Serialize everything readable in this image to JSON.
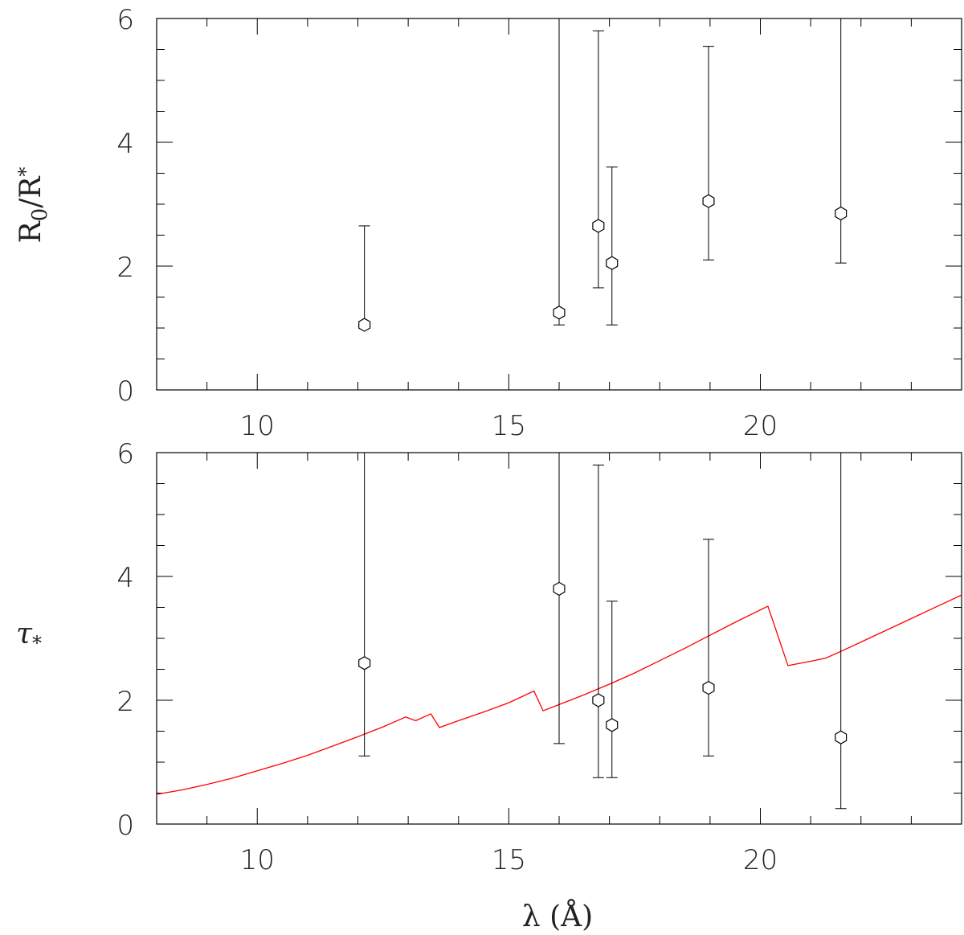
{
  "chart_data": [
    {
      "type": "scatter",
      "id": "top",
      "xlabel": "",
      "ylabel_main": "R",
      "ylabel_sub": "0",
      "ylabel_rest": "/R",
      "ylabel_sup": "*",
      "xlim": [
        8,
        24
      ],
      "ylim": [
        0,
        6
      ],
      "x_major_ticks": [
        10,
        15,
        20
      ],
      "x_tick_labels": [
        "10",
        "15",
        "20"
      ],
      "y_major_ticks": [
        0,
        2,
        4,
        6
      ],
      "y_tick_labels": [
        "0",
        "2",
        "4",
        "6"
      ],
      "x_minor_step": 1,
      "y_minor_step": 0.5,
      "series": [
        {
          "points": [
            {
              "x": 12.13,
              "y": 1.05,
              "ylo": 1.05,
              "yhi": 2.65
            },
            {
              "x": 16.0,
              "y": 1.25,
              "ylo": 1.05,
              "yhi": 6.0
            },
            {
              "x": 16.78,
              "y": 2.65,
              "ylo": 1.65,
              "yhi": 5.8
            },
            {
              "x": 17.05,
              "y": 2.05,
              "ylo": 1.05,
              "yhi": 3.6
            },
            {
              "x": 18.97,
              "y": 3.05,
              "ylo": 2.1,
              "yhi": 5.55
            },
            {
              "x": 21.6,
              "y": 2.85,
              "ylo": 2.05,
              "yhi": 6.0
            }
          ]
        }
      ]
    },
    {
      "type": "scatter",
      "id": "bottom",
      "xlabel": "λ (Å)",
      "ylabel": "τ",
      "ylabel_sub": "*",
      "xlim": [
        8,
        24
      ],
      "ylim": [
        0,
        6
      ],
      "x_major_ticks": [
        10,
        15,
        20
      ],
      "x_tick_labels": [
        "10",
        "15",
        "20"
      ],
      "y_major_ticks": [
        0,
        2,
        4,
        6
      ],
      "y_tick_labels": [
        "0",
        "2",
        "4",
        "6"
      ],
      "x_minor_step": 1,
      "y_minor_step": 0.5,
      "series": [
        {
          "points": [
            {
              "x": 12.13,
              "y": 2.6,
              "ylo": 1.1,
              "yhi": 6.0
            },
            {
              "x": 16.0,
              "y": 3.8,
              "ylo": 1.3,
              "yhi": 6.0
            },
            {
              "x": 16.78,
              "y": 2.0,
              "ylo": 0.75,
              "yhi": 5.8
            },
            {
              "x": 17.05,
              "y": 1.6,
              "ylo": 0.75,
              "yhi": 3.6
            },
            {
              "x": 18.97,
              "y": 2.2,
              "ylo": 1.1,
              "yhi": 4.6
            },
            {
              "x": 21.6,
              "y": 1.4,
              "ylo": 0.25,
              "yhi": 6.0
            }
          ]
        },
        {
          "line": [
            [
              8.0,
              0.48
            ],
            [
              8.5,
              0.55
            ],
            [
              9.0,
              0.64
            ],
            [
              9.5,
              0.74
            ],
            [
              10.0,
              0.86
            ],
            [
              10.5,
              0.98
            ],
            [
              11.0,
              1.11
            ],
            [
              11.5,
              1.26
            ],
            [
              12.0,
              1.41
            ],
            [
              12.5,
              1.57
            ],
            [
              12.95,
              1.73
            ],
            [
              13.15,
              1.67
            ],
            [
              13.45,
              1.78
            ],
            [
              13.62,
              1.56
            ],
            [
              14.0,
              1.67
            ],
            [
              14.5,
              1.81
            ],
            [
              15.0,
              1.96
            ],
            [
              15.5,
              2.15
            ],
            [
              15.68,
              1.83
            ],
            [
              16.0,
              1.93
            ],
            [
              16.5,
              2.09
            ],
            [
              17.0,
              2.26
            ],
            [
              17.5,
              2.44
            ],
            [
              18.0,
              2.64
            ],
            [
              18.5,
              2.84
            ],
            [
              19.0,
              3.05
            ],
            [
              19.5,
              3.26
            ],
            [
              20.15,
              3.52
            ],
            [
              20.55,
              2.56
            ],
            [
              21.0,
              2.63
            ],
            [
              21.3,
              2.68
            ],
            [
              21.6,
              2.79
            ],
            [
              22.0,
              2.94
            ],
            [
              22.5,
              3.13
            ],
            [
              23.0,
              3.32
            ],
            [
              23.5,
              3.51
            ],
            [
              24.0,
              3.7
            ]
          ]
        }
      ]
    }
  ]
}
